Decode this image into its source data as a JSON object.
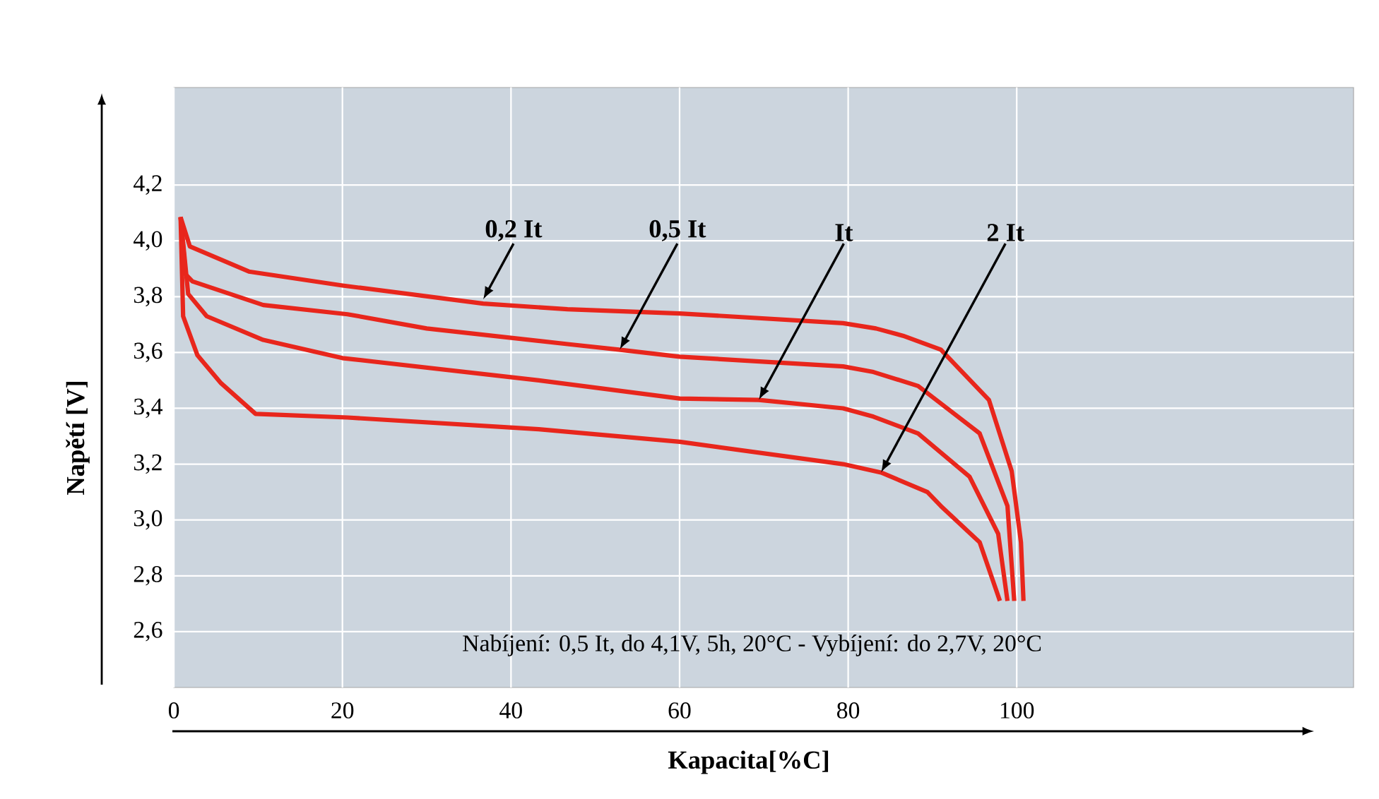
{
  "chart_data": {
    "type": "line",
    "xlabel": "Kapacita[%C]",
    "ylabel": "Napětí [V]",
    "xlim": [
      0,
      140
    ],
    "ylim": [
      2.4,
      4.55
    ],
    "xticks": [
      0,
      20,
      40,
      60,
      80,
      100
    ],
    "yticks": [
      {
        "value": 2.6,
        "label": "2,6"
      },
      {
        "value": 2.8,
        "label": "2,8"
      },
      {
        "value": 3.0,
        "label": "3,0"
      },
      {
        "value": 3.2,
        "label": "3,2"
      },
      {
        "value": 3.4,
        "label": "3,4"
      },
      {
        "value": 3.6,
        "label": "3,6"
      },
      {
        "value": 3.8,
        "label": "3,8"
      },
      {
        "value": 4.0,
        "label": "4,0"
      },
      {
        "value": 4.2,
        "label": "4,2"
      }
    ],
    "grid": true,
    "series": [
      {
        "color": "#e8261c",
        "x": [
          0.8,
          1.9,
          8.9,
          20,
          36.7,
          46.7,
          60,
          79.4,
          83.3,
          86.5,
          91,
          96.7,
          99.4,
          100.5,
          100.8
        ],
        "values": [
          4.085,
          3.98,
          3.89,
          3.84,
          3.775,
          3.755,
          3.74,
          3.705,
          3.686,
          3.66,
          3.61,
          3.43,
          3.175,
          2.92,
          2.71
        ]
      },
      {
        "color": "#e8261c",
        "x": [
          0.8,
          1.4,
          2.2,
          10.6,
          20.6,
          30,
          46.7,
          52.8,
          60,
          79.4,
          83,
          88.3,
          95.6,
          98.9,
          99.7
        ],
        "values": [
          4.085,
          3.88,
          3.855,
          3.77,
          3.737,
          3.686,
          3.63,
          3.61,
          3.585,
          3.55,
          3.53,
          3.48,
          3.31,
          3.05,
          2.71
        ]
      },
      {
        "color": "#e8261c",
        "x": [
          0.8,
          1.7,
          3.9,
          10.6,
          20,
          43.3,
          60,
          69.4,
          79.4,
          83,
          88.3,
          94.4,
          97.8,
          98.9
        ],
        "values": [
          4.085,
          3.81,
          3.73,
          3.645,
          3.58,
          3.5,
          3.435,
          3.43,
          3.4,
          3.37,
          3.31,
          3.155,
          2.95,
          2.71
        ]
      },
      {
        "color": "#e8261c",
        "x": [
          0.8,
          1.1,
          2.8,
          5.6,
          9.7,
          20.6,
          43.3,
          60,
          79.4,
          83.9,
          89.4,
          91,
          95.6,
          98
        ],
        "values": [
          4.085,
          3.73,
          3.59,
          3.49,
          3.38,
          3.367,
          3.325,
          3.28,
          3.2,
          3.17,
          3.1,
          3.05,
          2.92,
          2.71
        ]
      }
    ],
    "annotations": [
      {
        "text": "0,2 It",
        "x": 36.7,
        "y": 3.79
      },
      {
        "text": "0,5 It",
        "x": 52.9,
        "y": 3.61
      },
      {
        "text": "It",
        "x": 69.4,
        "y": 3.43
      },
      {
        "text": "2 It",
        "x": 83.9,
        "y": 3.17
      },
      "Nabíjení: 0,5 It, do 4,1V, 5h, 20°C - Vybíjení: do 2,7V, 20°C"
    ]
  }
}
